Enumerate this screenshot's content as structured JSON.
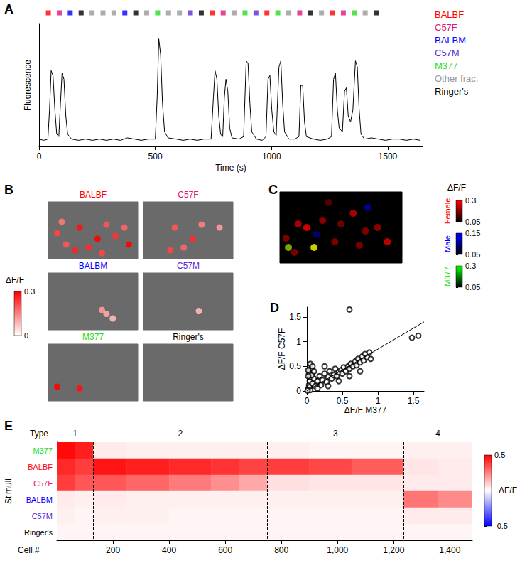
{
  "chart_data": [
    {
      "label": "A",
      "type": "line",
      "x_label": "Time (s)",
      "y_label": "Fluorescence",
      "xlim": [
        0,
        1650
      ],
      "xticks": [
        0,
        500,
        1000,
        1500
      ],
      "ylim": [
        0,
        1
      ],
      "tick_labels": "x",
      "grid": false,
      "color": "#000000",
      "x": [
        0,
        20,
        38,
        45,
        52,
        60,
        68,
        76,
        85,
        92,
        99,
        107,
        115,
        123,
        140,
        170,
        200,
        230,
        260,
        290,
        320,
        350,
        380,
        410,
        440,
        470,
        500,
        508,
        515,
        523,
        531,
        540,
        555,
        590,
        620,
        650,
        680,
        710,
        740,
        750,
        757,
        765,
        773,
        781,
        790,
        797,
        804,
        812,
        820,
        830,
        860,
        880,
        891,
        899,
        907,
        915,
        935,
        960,
        976,
        985,
        993,
        1001,
        1010,
        1020,
        1032,
        1040,
        1048,
        1056,
        1075,
        1100,
        1118,
        1126,
        1134,
        1142,
        1150,
        1180,
        1210,
        1240,
        1258,
        1267,
        1275,
        1283,
        1291,
        1305,
        1314,
        1322,
        1330,
        1340,
        1350,
        1361,
        1369,
        1377,
        1385,
        1400,
        1430,
        1460,
        1490,
        1520,
        1550,
        1580,
        1610,
        1640
      ],
      "values": [
        0.06,
        0.05,
        0.06,
        0.3,
        0.62,
        0.58,
        0.3,
        0.1,
        0.08,
        0.35,
        0.6,
        0.55,
        0.25,
        0.1,
        0.06,
        0.05,
        0.06,
        0.05,
        0.06,
        0.05,
        0.06,
        0.05,
        0.07,
        0.06,
        0.05,
        0.06,
        0.06,
        0.4,
        0.88,
        0.75,
        0.35,
        0.12,
        0.07,
        0.06,
        0.05,
        0.06,
        0.05,
        0.06,
        0.06,
        0.4,
        0.62,
        0.55,
        0.25,
        0.1,
        0.08,
        0.4,
        0.55,
        0.45,
        0.15,
        0.07,
        0.06,
        0.08,
        0.7,
        0.68,
        0.35,
        0.12,
        0.06,
        0.05,
        0.08,
        0.55,
        0.58,
        0.3,
        0.12,
        0.09,
        0.65,
        0.7,
        0.35,
        0.12,
        0.06,
        0.06,
        0.08,
        0.5,
        0.5,
        0.2,
        0.08,
        0.06,
        0.05,
        0.06,
        0.08,
        0.55,
        0.6,
        0.3,
        0.15,
        0.12,
        0.45,
        0.48,
        0.25,
        0.2,
        0.3,
        0.7,
        0.65,
        0.3,
        0.1,
        0.06,
        0.07,
        0.06,
        0.05,
        0.06,
        0.06,
        0.05,
        0.06,
        0.05
      ],
      "stimuli": {
        "legend": [
          {
            "name": "BALBF",
            "color": "#ff0000"
          },
          {
            "name": "C57F",
            "color": "#e0157e"
          },
          {
            "name": "BALBM",
            "color": "#0000ff"
          },
          {
            "name": "C57M",
            "color": "#5b2bd6"
          },
          {
            "name": "M377",
            "color": "#22dd22"
          },
          {
            "name": "Other frac.",
            "color": "#999999"
          },
          {
            "name": "Ringer's",
            "color": "#000000"
          }
        ],
        "times": [
          40,
          87,
          134,
          181,
          228,
          275,
          322,
          369,
          416,
          463,
          510,
          557,
          604,
          651,
          698,
          745,
          792,
          839,
          886,
          933,
          980,
          1027,
          1074,
          1121,
          1168,
          1215,
          1262,
          1309,
          1356,
          1403,
          1450
        ],
        "names": [
          "BALBF",
          "C57F",
          "BALBM",
          "Ringer's",
          "Other frac.",
          "Other frac.",
          "Other frac.",
          "BALBM",
          "Ringer's",
          "Other frac.",
          "M377",
          "Other frac.",
          "Other frac.",
          "C57M",
          "Ringer's",
          "BALBF",
          "C57F",
          "Other frac.",
          "M377",
          "C57M",
          "BALBF",
          "M377",
          "Other frac.",
          "C57F",
          "Ringer's",
          "Other frac.",
          "BALBF",
          "C57F",
          "M377",
          "Other frac.",
          "Ringer's"
        ]
      }
    },
    {
      "label": "B",
      "type": "image",
      "xlim": [
        0,
        1
      ],
      "ylim": [
        0,
        1
      ],
      "tick_labels": false,
      "colorbar": {
        "title": "ΔF/F",
        "range": [
          0,
          0.3
        ],
        "ticks": [
          0,
          0.3
        ],
        "colors": [
          "#ffffff",
          "#ff0000"
        ]
      },
      "panels": [
        {
          "title": "BALBF",
          "color": "#ff0000",
          "spots": [
            [
              0.1,
              0.45,
              0.22
            ],
            [
              0.35,
              0.55,
              0.28
            ],
            [
              0.45,
              0.2,
              0.25
            ],
            [
              0.55,
              0.35,
              0.3
            ],
            [
              0.65,
              0.6,
              0.2
            ],
            [
              0.75,
              0.4,
              0.24
            ],
            [
              0.85,
              0.55,
              0.18
            ],
            [
              0.2,
              0.25,
              0.2
            ],
            [
              0.3,
              0.15,
              0.26
            ],
            [
              0.6,
              0.1,
              0.22
            ],
            [
              0.9,
              0.25,
              0.3
            ],
            [
              0.15,
              0.65,
              0.16
            ]
          ]
        },
        {
          "title": "C57F",
          "color": "#e0157e",
          "spots": [
            [
              0.35,
              0.55,
              0.2
            ],
            [
              0.55,
              0.35,
              0.25
            ],
            [
              0.65,
              0.6,
              0.15
            ],
            [
              0.45,
              0.2,
              0.18
            ],
            [
              0.85,
              0.55,
              0.12
            ],
            [
              0.3,
              0.15,
              0.22
            ]
          ]
        },
        {
          "title": "BALBM",
          "color": "#0000ff",
          "spots": [
            [
              0.6,
              0.35,
              0.12
            ],
            [
              0.65,
              0.28,
              0.1
            ],
            [
              0.72,
              0.2,
              0.08
            ]
          ]
        },
        {
          "title": "C57M",
          "color": "#5b2bd6",
          "spots": [
            [
              0.62,
              0.33,
              0.08
            ]
          ]
        },
        {
          "title": "M377",
          "color": "#22dd22",
          "spots": [
            [
              0.1,
              0.25,
              0.3
            ],
            [
              0.35,
              0.22,
              0.28
            ]
          ]
        },
        {
          "title": "Ringer's",
          "color": "#000000",
          "spots": []
        }
      ]
    },
    {
      "label": "C",
      "type": "image",
      "xlim": [
        0,
        1
      ],
      "ylim": [
        0,
        1
      ],
      "tick_labels": false,
      "colorbar_title": "ΔF/F",
      "colorbars": [
        {
          "name": "Female",
          "color": "#ff0000",
          "range": [
            0.05,
            0.3
          ],
          "ticks": [
            0.05,
            0.3
          ],
          "colors": [
            "#000000",
            "#ff0000"
          ]
        },
        {
          "name": "Male",
          "color": "#0000ff",
          "range": [
            0.05,
            0.15
          ],
          "ticks": [
            0.05,
            0.15
          ],
          "colors": [
            "#000000",
            "#0000ff"
          ]
        },
        {
          "name": "M377",
          "color": "#22dd22",
          "range": [
            0.05,
            0.3
          ],
          "ticks": [
            0.05,
            0.3
          ],
          "colors": [
            "#000000",
            "#00ff00"
          ]
        }
      ],
      "spots": [
        {
          "x": 0.05,
          "y": 0.35,
          "Female": 0.2,
          "Male": null,
          "M377": null
        },
        {
          "x": 0.15,
          "y": 0.55,
          "Female": 0.25,
          "Male": null,
          "M377": null
        },
        {
          "x": 0.22,
          "y": 0.5,
          "Female": 0.3,
          "Male": null,
          "M377": null
        },
        {
          "x": 0.35,
          "y": 0.6,
          "Female": 0.22,
          "Male": null,
          "M377": null
        },
        {
          "x": 0.5,
          "y": 0.55,
          "Female": 0.18,
          "Male": null,
          "M377": null
        },
        {
          "x": 0.6,
          "y": 0.7,
          "Female": 0.25,
          "Male": null,
          "M377": null
        },
        {
          "x": 0.7,
          "y": 0.45,
          "Female": 0.2,
          "Male": null,
          "M377": null
        },
        {
          "x": 0.8,
          "y": 0.5,
          "Female": 0.22,
          "Male": null,
          "M377": null
        },
        {
          "x": 0.88,
          "y": 0.3,
          "Female": 0.28,
          "Male": null,
          "M377": null
        },
        {
          "x": 0.45,
          "y": 0.3,
          "Female": 0.2,
          "Male": null,
          "M377": null
        },
        {
          "x": 0.12,
          "y": 0.15,
          "Female": 0.2,
          "Male": null,
          "M377": null
        },
        {
          "x": 0.65,
          "y": 0.25,
          "Female": 0.2,
          "Male": null,
          "M377": null
        },
        {
          "x": 0.4,
          "y": 0.85,
          "Female": 0.15,
          "Male": null,
          "M377": null
        },
        {
          "x": 0.72,
          "y": 0.78,
          "Female": null,
          "Male": 0.12,
          "M377": null
        },
        {
          "x": 0.3,
          "y": 0.4,
          "Female": null,
          "Male": 0.1,
          "M377": null
        },
        {
          "x": 0.28,
          "y": 0.22,
          "Female": 0.3,
          "Male": null,
          "M377": 0.3
        },
        {
          "x": 0.07,
          "y": 0.22,
          "Female": 0.2,
          "Male": null,
          "M377": 0.25
        }
      ]
    },
    {
      "label": "D",
      "type": "scatter",
      "x_label": "ΔF/F M377",
      "y_label": "ΔF/F C57F",
      "xlim": [
        0,
        1.65
      ],
      "xticks": [
        0,
        0.5,
        1,
        1.5
      ],
      "ylim": [
        0,
        1.7
      ],
      "yticks": [
        0,
        0.5,
        1,
        1.5
      ],
      "grid": false,
      "marker": "emptyCircle",
      "color": "#000000",
      "x": [
        0.02,
        0.03,
        0.04,
        0.05,
        0.03,
        0.06,
        0.05,
        0.04,
        0.08,
        0.1,
        0.07,
        0.12,
        0.15,
        0.1,
        0.18,
        0.2,
        0.22,
        0.25,
        0.28,
        0.3,
        0.32,
        0.35,
        0.38,
        0.4,
        0.42,
        0.45,
        0.48,
        0.5,
        0.52,
        0.55,
        0.58,
        0.6,
        0.62,
        0.65,
        0.68,
        0.7,
        0.72,
        0.75,
        0.78,
        0.8,
        0.82,
        0.85,
        0.88,
        0.9,
        0.25,
        0.15,
        0.3,
        0.45,
        0.6,
        0.75,
        0.05,
        0.01,
        0.02,
        0.02,
        0.08,
        0.6,
        1.48,
        1.57
      ],
      "values": [
        0.05,
        0.12,
        0.2,
        0.28,
        0.35,
        0.45,
        0.55,
        0.08,
        0.15,
        0.25,
        0.32,
        0.1,
        0.2,
        0.4,
        0.3,
        0.12,
        0.22,
        0.35,
        0.18,
        0.28,
        0.4,
        0.25,
        0.32,
        0.45,
        0.3,
        0.38,
        0.42,
        0.35,
        0.48,
        0.4,
        0.5,
        0.45,
        0.55,
        0.5,
        0.6,
        0.52,
        0.65,
        0.58,
        0.7,
        0.62,
        0.75,
        0.68,
        0.78,
        0.65,
        0.5,
        0.05,
        0.1,
        0.2,
        0.3,
        0.4,
        0.02,
        0.01,
        0.3,
        0.42,
        0.5,
        1.65,
        1.08,
        1.12
      ],
      "fit": {
        "x": [
          0,
          1.65
        ],
        "values": [
          0,
          1.4
        ],
        "line_style": "solid"
      }
    },
    {
      "label": "E",
      "type": "heatmap",
      "x_label": "Cell #",
      "y_label": "Stimuli",
      "type_label": "Type",
      "xlim": [
        0,
        1480
      ],
      "xticks": [
        200,
        400,
        600,
        800,
        {
          "value": 1000,
          "label": "1,000"
        },
        {
          "value": 1200,
          "label": "1,200"
        },
        {
          "value": 1400,
          "label": "1,400"
        }
      ],
      "grid": false,
      "rows": [
        "M377",
        "BALBF",
        "C57F",
        "BALBM",
        "C57M",
        "Ringer's"
      ],
      "colors": [
        "#22dd22",
        "#ff0000",
        "#e0157e",
        "#0000ff",
        "#5b2bd6",
        "#000000"
      ],
      "types": [
        {
          "label": "1",
          "x": [
            0,
            130
          ]
        },
        {
          "label": "2",
          "x": [
            130,
            750
          ]
        },
        {
          "label": "3",
          "x": [
            750,
            1235
          ]
        },
        {
          "label": "4",
          "x": [
            1235,
            1480
          ]
        }
      ],
      "colorbar": {
        "title": "ΔF/F",
        "range": [
          -0.5,
          0.5
        ],
        "ticks": [
          -0.5,
          0.5
        ],
        "colors": [
          "#0000ff",
          "#ffffff",
          "#ff0000"
        ]
      },
      "cells": [
        {
          "x": [
            0,
            65
          ],
          "values": [
            0.48,
            0.42,
            0.38,
            0.04,
            0.03,
            0.02
          ]
        },
        {
          "x": [
            65,
            130
          ],
          "values": [
            0.44,
            0.38,
            0.33,
            0.03,
            0.02,
            0.02
          ]
        },
        {
          "x": [
            130,
            250
          ],
          "values": [
            0.04,
            0.46,
            0.33,
            0.04,
            0.03,
            0.02
          ]
        },
        {
          "x": [
            250,
            400
          ],
          "values": [
            0.03,
            0.44,
            0.3,
            0.03,
            0.03,
            0.02
          ]
        },
        {
          "x": [
            400,
            550
          ],
          "values": [
            0.03,
            0.42,
            0.26,
            0.03,
            0.02,
            0.02
          ]
        },
        {
          "x": [
            550,
            650
          ],
          "values": [
            0.03,
            0.4,
            0.22,
            0.03,
            0.02,
            0.02
          ]
        },
        {
          "x": [
            650,
            750
          ],
          "values": [
            0.03,
            0.37,
            0.17,
            0.03,
            0.02,
            0.02
          ]
        },
        {
          "x": [
            750,
            900
          ],
          "values": [
            0.03,
            0.38,
            0.06,
            0.03,
            0.02,
            0.02
          ]
        },
        {
          "x": [
            900,
            1050
          ],
          "values": [
            0.02,
            0.36,
            0.05,
            0.03,
            0.02,
            0.02
          ]
        },
        {
          "x": [
            1050,
            1235
          ],
          "values": [
            0.02,
            0.32,
            0.05,
            0.03,
            0.02,
            0.02
          ]
        },
        {
          "x": [
            1235,
            1360
          ],
          "values": [
            0.03,
            0.05,
            0.04,
            0.27,
            0.04,
            0.02
          ]
        },
        {
          "x": [
            1360,
            1480
          ],
          "values": [
            0.03,
            0.04,
            0.04,
            0.23,
            0.04,
            0.02
          ]
        }
      ]
    }
  ]
}
